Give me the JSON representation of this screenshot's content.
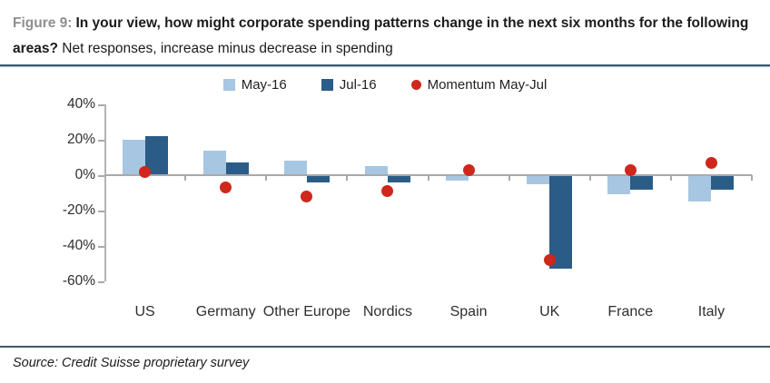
{
  "figure": {
    "label": "Figure 9:",
    "question_bold": "In your view, how might corporate spending patterns change in the next six months for the following areas?",
    "subtitle_regular": "Net responses, increase minus decrease in spending"
  },
  "source": "Source: Credit Suisse proprietary survey",
  "colors": {
    "may_16": "#a7c6e2",
    "jul_16": "#2b5c88",
    "momentum": "#cf271c",
    "axis": "#a9a9a9",
    "figure_label": "#8f8f8f",
    "rule": "#3b5a6e"
  },
  "chart_data": {
    "type": "bar",
    "categories": [
      "US",
      "Germany",
      "Other Europe",
      "Nordics",
      "Spain",
      "UK",
      "France",
      "Italy"
    ],
    "series": [
      {
        "name": "May-16",
        "type": "bar",
        "values": [
          20,
          14,
          8,
          5,
          -3,
          -5,
          -11,
          -15
        ]
      },
      {
        "name": "Jul-16",
        "type": "bar",
        "values": [
          22,
          7,
          -4,
          -4,
          0,
          -53,
          -8,
          -8
        ]
      },
      {
        "name": "Momentum May-Jul",
        "type": "scatter",
        "values": [
          2,
          -7,
          -12,
          -9,
          3,
          -48,
          3,
          7
        ]
      }
    ],
    "y_ticks": [
      "40%",
      "20%",
      "0%",
      "-20%",
      "-40%",
      "-60%"
    ],
    "ylim": [
      -60,
      40
    ],
    "grid": "off",
    "legend_position": "top"
  }
}
